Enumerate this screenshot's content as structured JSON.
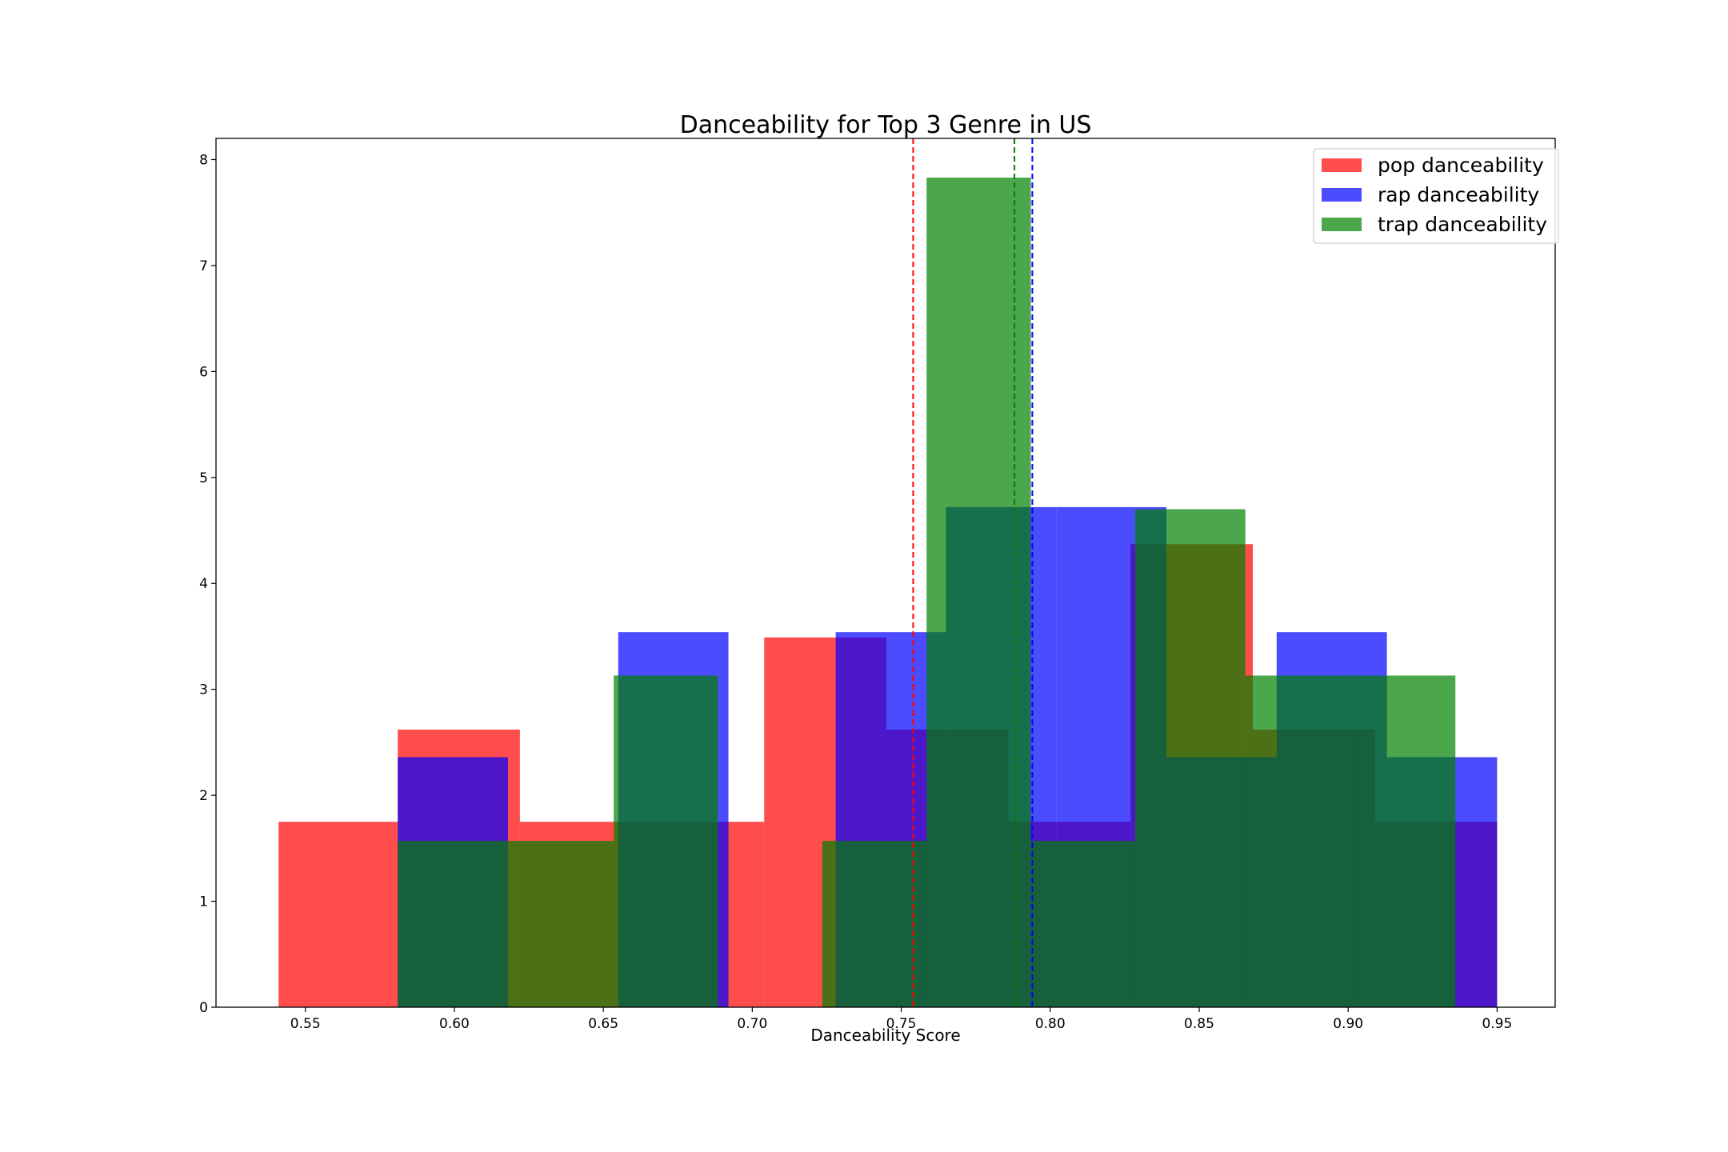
{
  "chart_data": {
    "type": "histogram",
    "title": "Danceability for Top 3 Genre in US",
    "xlabel": "Danceability Score",
    "ylabel": "",
    "xlim": [
      0.52,
      0.9695
    ],
    "ylim": [
      0,
      8.2
    ],
    "xticks": [
      "0.55",
      "0.60",
      "0.65",
      "0.70",
      "0.75",
      "0.80",
      "0.85",
      "0.90",
      "0.95"
    ],
    "yticks": [
      "0",
      "1",
      "2",
      "3",
      "4",
      "5",
      "6",
      "7",
      "8"
    ],
    "grid": false,
    "legend_position": "upper-right",
    "series": [
      {
        "name": "pop danceability",
        "color": "#ff0000",
        "alpha": 0.7,
        "bins": [
          0.541,
          0.581,
          0.622,
          0.663,
          0.704,
          0.745,
          0.786,
          0.827,
          0.868,
          0.909,
          0.95
        ],
        "values": [
          1.75,
          2.62,
          1.75,
          1.75,
          3.49,
          2.62,
          1.75,
          4.37,
          2.62,
          1.75
        ],
        "mean": 0.754
      },
      {
        "name": "rap danceability",
        "color": "#0000ff",
        "alpha": 0.7,
        "bins": [
          0.581,
          0.618,
          0.655,
          0.692,
          0.728,
          0.765,
          0.802,
          0.839,
          0.876,
          0.913,
          0.95
        ],
        "values": [
          2.36,
          0,
          3.54,
          0,
          3.54,
          4.72,
          4.72,
          2.36,
          3.54,
          2.36
        ],
        "mean": 0.794
      },
      {
        "name": "trap danceability",
        "color": "#008000",
        "alpha": 0.7,
        "bins": [
          0.581,
          0.618,
          0.6535,
          0.6885,
          0.7235,
          0.7585,
          0.7935,
          0.8285,
          0.8655,
          0.9015,
          0.936
        ],
        "values": [
          1.57,
          1.57,
          3.13,
          0,
          1.57,
          7.83,
          1.57,
          4.7,
          3.13,
          3.13
        ],
        "mean": 0.788
      }
    ]
  }
}
